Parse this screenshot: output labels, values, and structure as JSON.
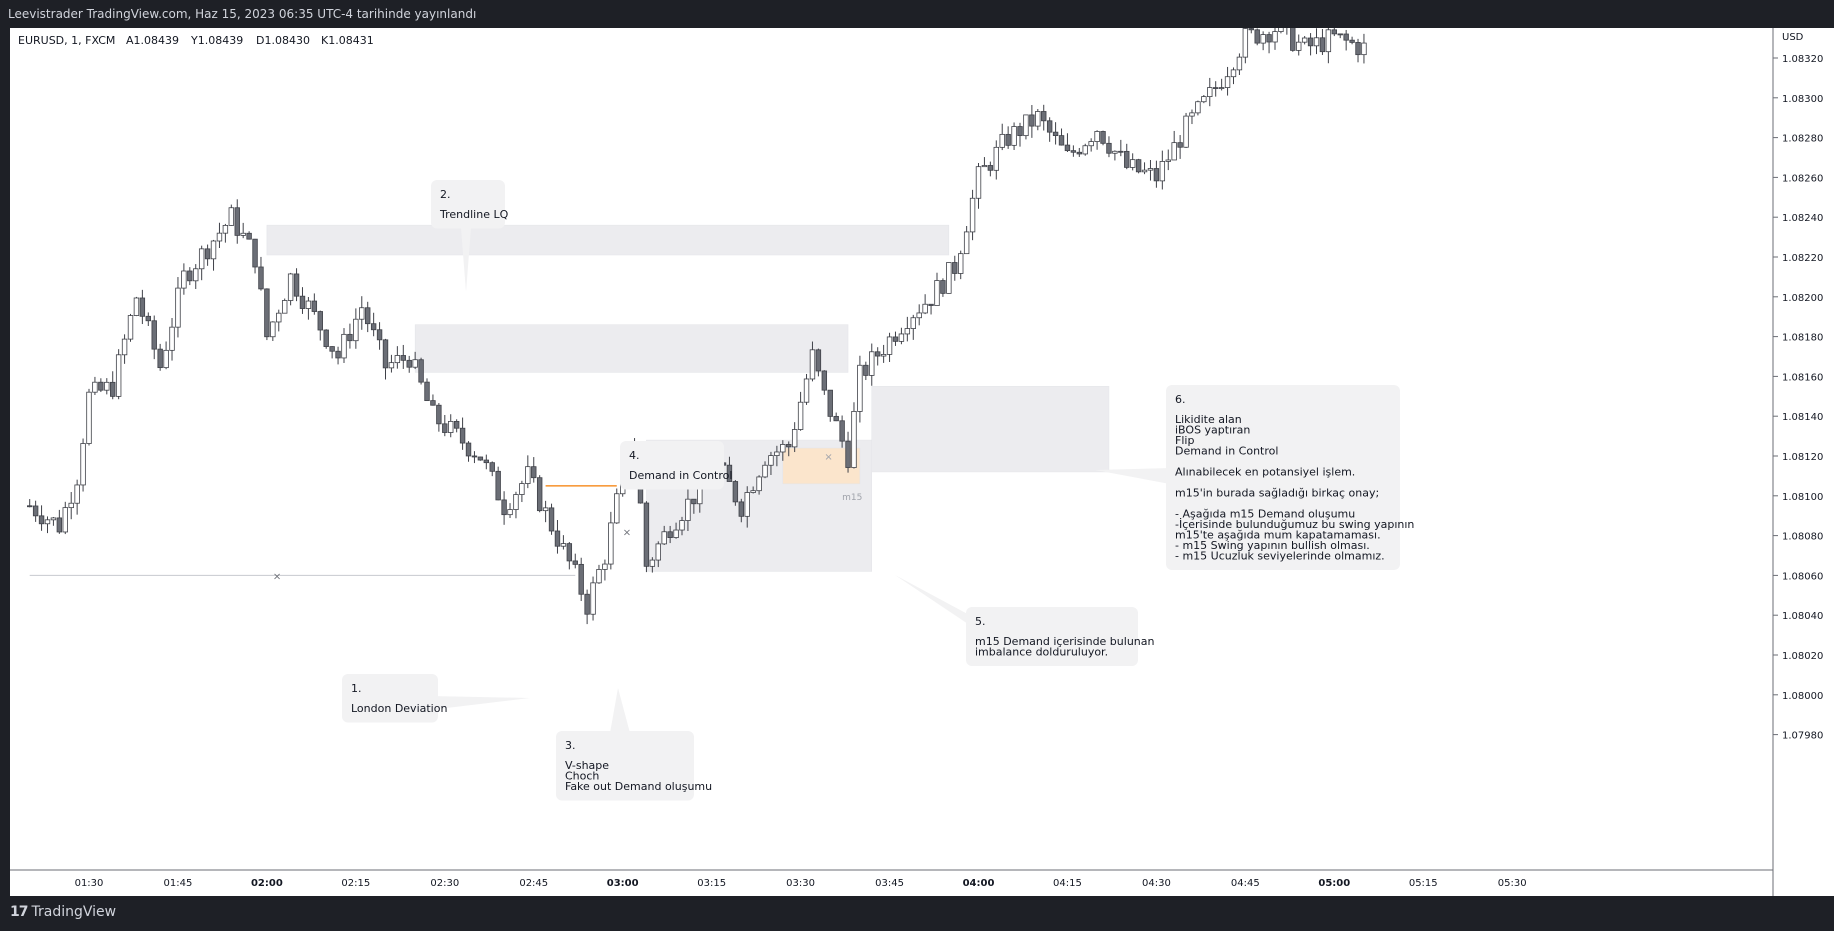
{
  "header": {
    "published": "Leevistrader TradingView.com, Haz 15, 2023 06:35 UTC-4 tarihinde yayınlandı"
  },
  "legend": {
    "symbol": "EURUSD, 1, FXCM",
    "open": "A1.08439",
    "high": "Y1.08439",
    "low": "D1.08430",
    "close": "K1.08431"
  },
  "brand": {
    "name": "TradingView",
    "mark": "17"
  },
  "colors": {
    "up": "#ffffff",
    "down": "#6b6e76",
    "wick": "#3f4148",
    "zone": "#ececef",
    "demand": "#fbe5cc",
    "orange_line": "#f57c00"
  },
  "chart_data": {
    "type": "candlestick",
    "symbol": "EURUSD",
    "timeframe": "1",
    "ylabel": "USD",
    "y_ticks": [
      "1.08320",
      "1.08300",
      "1.08280",
      "1.08260",
      "1.08240",
      "1.08220",
      "1.08200",
      "1.08180",
      "1.08160",
      "1.08140",
      "1.08120",
      "1.08100",
      "1.08080",
      "1.08060",
      "1.08040",
      "1.08020",
      "1.08000",
      "1.07980"
    ],
    "x_ticks": [
      "01:30",
      "01:45",
      "02:00",
      "02:15",
      "02:30",
      "02:45",
      "03:00",
      "03:15",
      "03:30",
      "03:45",
      "04:00",
      "04:15",
      "04:30",
      "04:45",
      "05:00",
      "05:15",
      "05:30"
    ],
    "bold_x_ticks": [
      "02:00",
      "03:00",
      "04:00",
      "05:00"
    ],
    "price_path": [
      [
        "01:20",
        1.08095
      ],
      [
        "01:25",
        1.08085
      ],
      [
        "01:28",
        1.0811
      ],
      [
        "01:30",
        1.0815
      ],
      [
        "01:34",
        1.08155
      ],
      [
        "01:38",
        1.082
      ],
      [
        "01:42",
        1.08165
      ],
      [
        "01:46",
        1.0821
      ],
      [
        "01:50",
        1.08225
      ],
      [
        "01:54",
        1.0824
      ],
      [
        "01:58",
        1.0822
      ],
      [
        "02:00",
        1.0818
      ],
      [
        "02:04",
        1.0821
      ],
      [
        "02:08",
        1.0819
      ],
      [
        "02:12",
        1.0817
      ],
      [
        "02:16",
        1.08195
      ],
      [
        "02:20",
        1.08165
      ],
      [
        "02:24",
        1.0817
      ],
      [
        "02:28",
        1.0814
      ],
      [
        "02:32",
        1.0813
      ],
      [
        "02:36",
        1.0812
      ],
      [
        "02:40",
        1.08095
      ],
      [
        "02:44",
        1.0811
      ],
      [
        "02:48",
        1.08085
      ],
      [
        "02:52",
        1.0806
      ],
      [
        "02:54",
        1.08045
      ],
      [
        "02:57",
        1.0807
      ],
      [
        "03:00",
        1.0811
      ],
      [
        "03:02",
        1.08125
      ],
      [
        "03:04",
        1.08065
      ],
      [
        "03:08",
        1.08085
      ],
      [
        "03:12",
        1.081
      ],
      [
        "03:16",
        1.08115
      ],
      [
        "03:20",
        1.08095
      ],
      [
        "03:24",
        1.0812
      ],
      [
        "03:28",
        1.08125
      ],
      [
        "03:32",
        1.0817
      ],
      [
        "03:34",
        1.0815
      ],
      [
        "03:36",
        1.08135
      ],
      [
        "03:38",
        1.0812
      ],
      [
        "03:40",
        1.0816
      ],
      [
        "03:44",
        1.08175
      ],
      [
        "03:48",
        1.0819
      ],
      [
        "03:52",
        1.082
      ],
      [
        "03:56",
        1.08215
      ],
      [
        "04:00",
        1.0826
      ],
      [
        "04:05",
        1.0828
      ],
      [
        "04:10",
        1.0829
      ],
      [
        "04:15",
        1.0827
      ],
      [
        "04:20",
        1.08285
      ],
      [
        "04:25",
        1.08265
      ],
      [
        "04:30",
        1.0826
      ],
      [
        "04:35",
        1.08285
      ],
      [
        "04:40",
        1.08305
      ],
      [
        "04:45",
        1.0833
      ],
      [
        "04:50",
        1.08335
      ],
      [
        "04:55",
        1.08325
      ],
      [
        "05:00",
        1.0833
      ],
      [
        "05:05",
        1.08325
      ]
    ],
    "zones": [
      {
        "name": "trendline-lq-zone",
        "from": "02:00",
        "to": "03:55",
        "top": 1.08236,
        "bottom": 1.08221
      },
      {
        "name": "upper-supply-zone",
        "from": "02:25",
        "to": "03:38",
        "top": 1.08186,
        "bottom": 1.08162
      },
      {
        "name": "lower-gray-zone",
        "from": "03:04",
        "to": "03:42",
        "top": 1.08128,
        "bottom": 1.08062
      },
      {
        "name": "right-gray-zone",
        "from": "03:42",
        "to": "04:22",
        "top": 1.08155,
        "bottom": 1.08112
      },
      {
        "name": "m15-demand-zone",
        "from": "03:27",
        "to": "03:40",
        "top": 1.08124,
        "bottom": 1.08106
      }
    ],
    "levels": [
      {
        "name": "london-low-line",
        "price": 1.0806,
        "from": "01:20",
        "to": "02:52"
      },
      {
        "name": "choch-orange-line",
        "price": 1.08105,
        "from": "02:47",
        "to": "02:59"
      },
      {
        "name": "dashed-high-line",
        "price": 1.08126,
        "from": "03:03",
        "to": "03:17"
      }
    ],
    "zone_label": "m15",
    "annotations": [
      {
        "name": "note-1",
        "number": "1.",
        "lines": [
          "London Deviation"
        ]
      },
      {
        "name": "note-2",
        "number": "2.",
        "lines": [
          "Trendline LQ"
        ]
      },
      {
        "name": "note-3",
        "number": "3.",
        "lines": [
          "V-shape",
          "Choch",
          "Fake out Demand oluşumu"
        ]
      },
      {
        "name": "note-4",
        "number": "4.",
        "lines": [
          "Demand in Control"
        ]
      },
      {
        "name": "note-5",
        "number": "5.",
        "lines": [
          "m15 Demand içerisinde bulunan",
          "imbalance dolduruluyor."
        ]
      },
      {
        "name": "note-6",
        "number": "6.",
        "lines": [
          "Likidite alan",
          "iBOS yaptıran",
          "Flip",
          "Demand in Control",
          "",
          "Alınabilecek en potansiyel işlem.",
          "",
          "m15'in burada sağladığı birkaç onay;",
          "",
          "- Aşağıda m15 Demand oluşumu",
          "-İçerisinde bulunduğumuz bu swing yapının",
          "m15'te aşağıda mum kapatamaması.",
          "- m15 Swing yapının bullish olması.",
          "- m15 Ucuzluk seviyelerinde olmamız."
        ]
      }
    ]
  }
}
